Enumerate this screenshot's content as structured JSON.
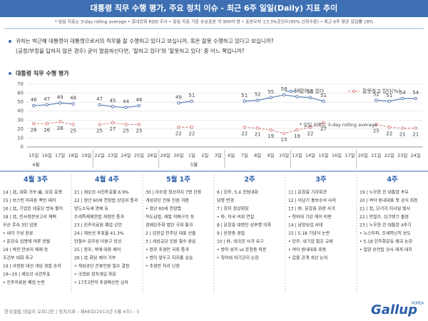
{
  "header": {
    "title": "대통령 직무 수행 평가, 주요 정치 이슈 - 최근 6주 일일(Daily) 지표 추이",
    "info": "* 일일 지표는 3-day rolling average • 휴대전화 RDD 조사 • 일일 지표 기준 유효표본 약 900여 명 • 표본오차 ±3.3%포인트(95% 신뢰수준) • 최근 6주 평균 응답률 18%"
  },
  "questions": [
    "귀하는 박근혜 대통령이 대통령으로서의 직무를 잘 수행하고 있다고 보십니까, 혹은 잘못 수행하고 있다고 보십니까?",
    "(긍정/부정을 답하지 않은 경우) 굳이 말씀하신다면, '잘하고 있다'와 '잘못하고 있다' 중 어느 쪽입니까?"
  ],
  "chart_data": {
    "type": "line",
    "title": "대통령 직무 수행 평가",
    "categories": [
      "15일",
      "16일",
      "17일",
      "18일",
      "19일",
      "22일",
      "23일",
      "24일",
      "25일",
      "26일",
      "29일",
      "30일",
      "1일",
      "2일",
      "3일",
      "6일",
      "7일",
      "8일",
      "9일",
      "10일",
      "13일",
      "14일",
      "15일",
      "16일",
      "17일",
      "20일",
      "21일",
      "22일",
      "23일",
      "24일"
    ],
    "months": [
      "4월",
      "5월"
    ],
    "series": [
      {
        "name": "잘하고 있다",
        "color": "#5b7fb3",
        "values": [
          46,
          47,
          49,
          48,
          null,
          47,
          45,
          44,
          46,
          null,
          null,
          49,
          51,
          null,
          null,
          null,
          51,
          52,
          55,
          58,
          56,
          55,
          51,
          null,
          null,
          null,
          52,
          51,
          54,
          54
        ]
      },
      {
        "name": "잘못하고 있다(%)",
        "color": "#d98585",
        "values": [
          26,
          26,
          28,
          25,
          null,
          25,
          27,
          25,
          25,
          null,
          null,
          22,
          22,
          null,
          null,
          null,
          22,
          21,
          19,
          15,
          19,
          22,
          27,
          null,
          null,
          null,
          25,
          22,
          21,
          21
        ]
      }
    ],
    "ylim": [
      0,
      70
    ],
    "yticks": [
      0,
      10,
      20,
      30,
      40,
      50,
      60,
      70
    ],
    "grid": true,
    "legend": "top-right",
    "annotation": "* 일일 지표는 3-day rolling average"
  },
  "weeks": [
    {
      "label": "4월 3주",
      "items": [
        "14 | 北, 대화 거부·美, 유감 표명",
        "15 | 보스턴 마라톤 폭탄 테러",
        "16 | 北, 기업인 대표단 방북 불허",
        "18 | 北, 인사청문보고서 채택",
        "    무산 후속 3인 임명",
        "    • 내각 구성 완료",
        "    • 윤진숙 임명에 여론 반발",
        "19 | 북한 안보리 제재 등",
        "    조건부 대화 촉구",
        "19 | 국정원 대선 개입 경찰 송치",
        "19~20 | 재보선 사전투표",
        "    • 진주의료원 폐업 논란"
      ]
    },
    {
      "label": "4월 4주",
      "items": [
        "21 | 재보선 사전투표율 6.9%",
        "22 | 정년 60세 연장법 상임위 통과",
        "    양도소득세 면제 등",
        "    조세특례제한법 개정안 통과",
        "23 | 진주의료원 폐업 선언",
        "24 | 재보선 투표율 41.3%",
        "    안철수·김무성·이완구 당선",
        "25 | 정부, 북에 대화 제의",
        "26 | 北 회담 제의 거부",
        "    • 개성공단 잔류인원 철수 결정",
        "    • 국정원 정치개입 파문",
        "    • 17조3천억 추경예산안 심의"
      ]
    },
    {
      "label": "5월 1주",
      "items": [
        "30 | 미수령 정산까지 7명 잔류",
        "    개성공단 잔류 인원 귀환",
        "    • 정년 60세 연장법",
        "    하도급법, 재벌 지배구조 등",
        "    경제민주화 법안 국회 통과",
        "2 | 김한길 민주당 대표 선출",
        "3 | 개성공단 인원 철수 완료",
        "    • 정부 추경안 국회 통과",
        "    • 방미 앞두고 지지율 상승",
        "    • 추경안 처리 난항"
      ]
    },
    {
      "label": "2주",
      "items": [
        "6 | 민주, 5.4 전당대회",
        "    당명 변경",
        "7 | 한미 정상회담",
        "    • 朴, 미국 의회 연설",
        "8 | 윤창중 대변인 성추행 의혹",
        "9 | 윤창중 경질",
        "10 | 朴, 대국민 사과 요구",
        "    • 방미 성과 vs 윤창중 파문",
        "    • 청와대 위기관리 논란"
      ]
    },
    {
      "label": "3주",
      "items": [
        "11 | 윤창중 기자회견",
        "12 | 이남기 홍보수석 사의",
        "13 | 朴, 윤창중 관련 사과",
        "    • 청와대 기강 해이 비판",
        "14 | 남양유업 사태",
        "15 | 5.18 기념식 논란",
        "    • 민주, 대기업 횡포 규제",
        "    • 여야 원내대표 회동",
        "    • 갑을 관계 개선 논의"
      ]
    },
    {
      "label": "4주",
      "items": [
        "19 | 노무현 전 대통령 추모",
        "20 | 여야 원내대표 첫 공식 회동",
        "21 | 北, 단거리 미사일 발사",
        "22 | 안철수, 싱크탱크 출범",
        "23 | 노무현 전 대통령 4주기",
        "    • 뉴스타파, 조세피난처 보도",
        "    • 5.18 민주화운동 왜곡 논란",
        "    • 밀양 송전탑 공사 재개 대치"
      ]
    }
  ],
  "footer": {
    "text": "한국갤럽 데일리 오피니언 | 정치지표 - 제68호(2013년 5월 4주) - 5",
    "logo": "Gallup",
    "logo_sub": "KOREA"
  }
}
